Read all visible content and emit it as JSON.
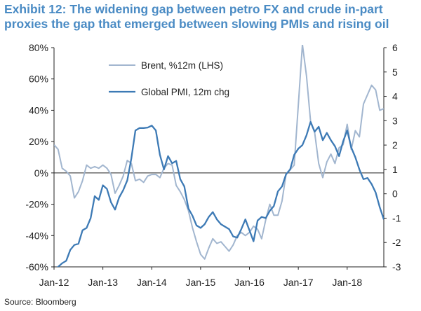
{
  "header": {
    "title_line1": "Exhibit 12: The widening gap between petro FX and crude in-part",
    "title_line2": "proxies the gap that emerged between slowing PMIs and rising oil"
  },
  "footer": {
    "source": "Source: Bloomberg"
  },
  "colors": {
    "title": "#4a8bc4",
    "brent": "#a2b6cf",
    "pmi": "#3d7ab5"
  },
  "chart_data": {
    "type": "line",
    "title": "",
    "x_ticks": [
      "Jan-12",
      "Jan-13",
      "Jan-14",
      "Jan-15",
      "Jan-16",
      "Jan-17",
      "Jan-18"
    ],
    "x_range": [
      "2012-01",
      "2018-10"
    ],
    "y_left": {
      "label": "",
      "ticks": [
        "80%",
        "60%",
        "40%",
        "20%",
        "0%",
        "-20%",
        "-40%",
        "-60%"
      ],
      "range": [
        -60,
        80
      ]
    },
    "y_right": {
      "label": "",
      "ticks": [
        "6",
        "5",
        "4",
        "3",
        "2",
        "1",
        "0",
        "-1",
        "-2",
        "-3"
      ],
      "range": [
        -3,
        6
      ]
    },
    "grid": false,
    "legend": "top-left",
    "zero_line": true,
    "series": [
      {
        "name": "Brent, %12m (LHS)",
        "axis": "left",
        "color": "#a2b6cf",
        "points": [
          [
            "2012-01",
            18
          ],
          [
            "2012-02",
            15
          ],
          [
            "2012-03",
            3
          ],
          [
            "2012-04",
            1
          ],
          [
            "2012-05",
            -2
          ],
          [
            "2012-06",
            -16
          ],
          [
            "2012-07",
            -12
          ],
          [
            "2012-08",
            -5
          ],
          [
            "2012-09",
            5
          ],
          [
            "2012-10",
            3
          ],
          [
            "2012-11",
            4
          ],
          [
            "2012-12",
            3
          ],
          [
            "2013-01",
            5
          ],
          [
            "2013-02",
            3
          ],
          [
            "2013-03",
            -1
          ],
          [
            "2013-04",
            -13
          ],
          [
            "2013-05",
            -8
          ],
          [
            "2013-06",
            -2
          ],
          [
            "2013-07",
            8
          ],
          [
            "2013-08",
            6
          ],
          [
            "2013-09",
            -5
          ],
          [
            "2013-10",
            -4
          ],
          [
            "2013-11",
            -6
          ],
          [
            "2013-12",
            -2
          ],
          [
            "2014-01",
            -1
          ],
          [
            "2014-02",
            -1
          ],
          [
            "2014-03",
            -3
          ],
          [
            "2014-04",
            3
          ],
          [
            "2014-05",
            6
          ],
          [
            "2014-06",
            5
          ],
          [
            "2014-07",
            -8
          ],
          [
            "2014-08",
            -12
          ],
          [
            "2014-09",
            -17
          ],
          [
            "2014-10",
            -24
          ],
          [
            "2014-11",
            -35
          ],
          [
            "2014-12",
            -44
          ],
          [
            "2015-01",
            -52
          ],
          [
            "2015-02",
            -55
          ],
          [
            "2015-03",
            -48
          ],
          [
            "2015-04",
            -42
          ],
          [
            "2015-05",
            -45
          ],
          [
            "2015-06",
            -44
          ],
          [
            "2015-07",
            -47
          ],
          [
            "2015-08",
            -50
          ],
          [
            "2015-09",
            -46
          ],
          [
            "2015-10",
            -40
          ],
          [
            "2015-11",
            -38
          ],
          [
            "2015-12",
            -40
          ],
          [
            "2016-01",
            -38
          ],
          [
            "2016-02",
            -34
          ],
          [
            "2016-03",
            -36
          ],
          [
            "2016-04",
            -42
          ],
          [
            "2016-05",
            -30
          ],
          [
            "2016-06",
            -20
          ],
          [
            "2016-07",
            -27
          ],
          [
            "2016-08",
            -27
          ],
          [
            "2016-09",
            -18
          ],
          [
            "2016-10",
            -1
          ],
          [
            "2016-11",
            2
          ],
          [
            "2016-12",
            5
          ],
          [
            "2017-01",
            43
          ],
          [
            "2017-02",
            82
          ],
          [
            "2017-03",
            62
          ],
          [
            "2017-04",
            33
          ],
          [
            "2017-05",
            26
          ],
          [
            "2017-06",
            6
          ],
          [
            "2017-07",
            -3
          ],
          [
            "2017-08",
            7
          ],
          [
            "2017-09",
            12
          ],
          [
            "2017-10",
            6
          ],
          [
            "2017-11",
            16
          ],
          [
            "2017-12",
            18
          ],
          [
            "2018-01",
            31
          ],
          [
            "2018-02",
            15
          ],
          [
            "2018-03",
            27
          ],
          [
            "2018-04",
            23
          ],
          [
            "2018-05",
            44
          ],
          [
            "2018-06",
            50
          ],
          [
            "2018-07",
            56
          ],
          [
            "2018-08",
            53
          ],
          [
            "2018-09",
            40
          ],
          [
            "2018-10",
            41
          ]
        ]
      },
      {
        "name": "Global PMI, 12m chg",
        "axis": "right",
        "color": "#3d7ab5",
        "points": [
          [
            "2012-01",
            -3.1
          ],
          [
            "2012-02",
            -3.0
          ],
          [
            "2012-03",
            -2.85
          ],
          [
            "2012-04",
            -2.75
          ],
          [
            "2012-05",
            -2.3
          ],
          [
            "2012-06",
            -2.1
          ],
          [
            "2012-07",
            -2.05
          ],
          [
            "2012-08",
            -1.5
          ],
          [
            "2012-09",
            -1.4
          ],
          [
            "2012-10",
            -1.0
          ],
          [
            "2012-11",
            -0.1
          ],
          [
            "2012-12",
            -0.25
          ],
          [
            "2013-01",
            0.35
          ],
          [
            "2013-02",
            0.2
          ],
          [
            "2013-03",
            -0.35
          ],
          [
            "2013-04",
            -0.65
          ],
          [
            "2013-05",
            -0.15
          ],
          [
            "2013-06",
            0.15
          ],
          [
            "2013-07",
            0.55
          ],
          [
            "2013-08",
            1.45
          ],
          [
            "2013-09",
            2.6
          ],
          [
            "2013-10",
            2.7
          ],
          [
            "2013-11",
            2.7
          ],
          [
            "2013-12",
            2.72
          ],
          [
            "2014-01",
            2.8
          ],
          [
            "2014-02",
            2.6
          ],
          [
            "2014-03",
            1.6
          ],
          [
            "2014-04",
            1.0
          ],
          [
            "2014-05",
            1.55
          ],
          [
            "2014-06",
            1.25
          ],
          [
            "2014-07",
            1.35
          ],
          [
            "2014-08",
            0.6
          ],
          [
            "2014-09",
            0.3
          ],
          [
            "2014-10",
            -0.6
          ],
          [
            "2014-11",
            -0.9
          ],
          [
            "2014-12",
            -1.3
          ],
          [
            "2015-01",
            -1.4
          ],
          [
            "2015-02",
            -1.25
          ],
          [
            "2015-03",
            -0.95
          ],
          [
            "2015-04",
            -0.75
          ],
          [
            "2015-05",
            -1.05
          ],
          [
            "2015-06",
            -1.25
          ],
          [
            "2015-07",
            -1.35
          ],
          [
            "2015-08",
            -1.45
          ],
          [
            "2015-09",
            -1.75
          ],
          [
            "2015-10",
            -1.8
          ],
          [
            "2015-11",
            -1.45
          ],
          [
            "2015-12",
            -1.05
          ],
          [
            "2016-01",
            -1.5
          ],
          [
            "2016-02",
            -1.95
          ],
          [
            "2016-03",
            -1.1
          ],
          [
            "2016-04",
            -0.95
          ],
          [
            "2016-05",
            -1.0
          ],
          [
            "2016-06",
            -0.7
          ],
          [
            "2016-07",
            -0.5
          ],
          [
            "2016-08",
            0.1
          ],
          [
            "2016-09",
            0.3
          ],
          [
            "2016-10",
            0.8
          ],
          [
            "2016-11",
            1.0
          ],
          [
            "2016-12",
            1.6
          ],
          [
            "2017-01",
            1.85
          ],
          [
            "2017-02",
            2.0
          ],
          [
            "2017-03",
            2.4
          ],
          [
            "2017-04",
            2.95
          ],
          [
            "2017-05",
            2.55
          ],
          [
            "2017-06",
            2.75
          ],
          [
            "2017-07",
            2.2
          ],
          [
            "2017-08",
            2.5
          ],
          [
            "2017-09",
            2.2
          ],
          [
            "2017-10",
            1.95
          ],
          [
            "2017-11",
            1.55
          ],
          [
            "2017-12",
            2.15
          ],
          [
            "2018-01",
            2.6
          ],
          [
            "2018-02",
            1.9
          ],
          [
            "2018-03",
            1.5
          ],
          [
            "2018-04",
            1.0
          ],
          [
            "2018-05",
            0.6
          ],
          [
            "2018-06",
            0.65
          ],
          [
            "2018-07",
            0.4
          ],
          [
            "2018-08",
            0.05
          ],
          [
            "2018-09",
            -0.55
          ],
          [
            "2018-10",
            -1.05
          ]
        ]
      }
    ]
  }
}
